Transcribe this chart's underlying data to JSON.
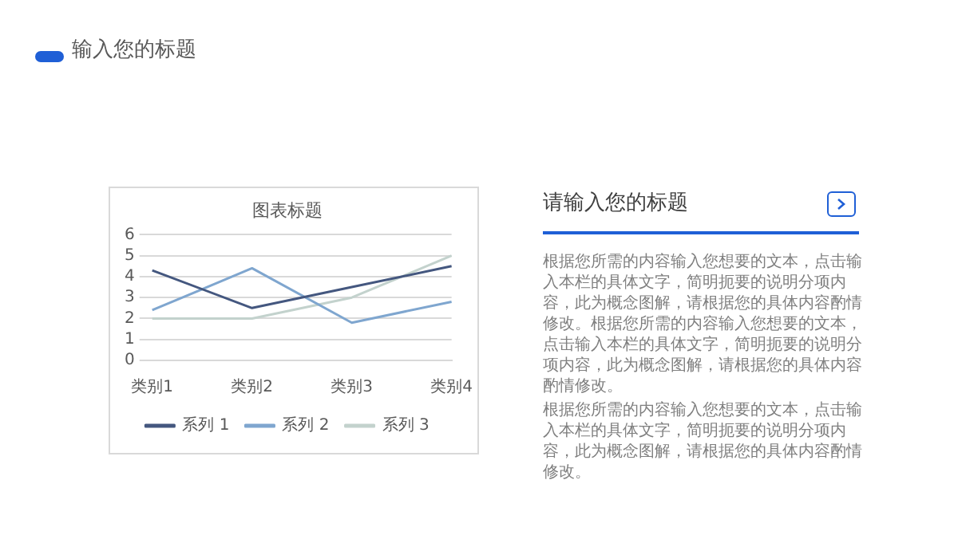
{
  "chart_data": {
    "type": "line",
    "title": "图表标题",
    "categories": [
      "类别1",
      "类别2",
      "类别3",
      "类别4"
    ],
    "series": [
      {
        "name": "系列 1",
        "color": "#44577f",
        "values": [
          4.3,
          2.5,
          3.5,
          4.5
        ]
      },
      {
        "name": "系列 2",
        "color": "#7fa6cf",
        "values": [
          2.4,
          4.4,
          1.8,
          2.8
        ]
      },
      {
        "name": "系列 3",
        "color": "#c3d2cd",
        "values": [
          2,
          2,
          3,
          5
        ]
      }
    ],
    "ylim": [
      0,
      6
    ],
    "yticks": [
      0,
      1,
      2,
      3,
      4,
      5,
      6
    ],
    "grid": "y",
    "legend": "bottom",
    "marker": "none",
    "line_style": "solid",
    "annotations": [
      "输入您的标题",
      "请输入您的标题",
      "根据您所需的内容输入您想要的文本，点击输入本栏的具体文字，简明扼要的说明分项内容，此为概念图解，请根据您的具体内容酌情修改。根据您所需的内容输入您想要的文本，点击输入本栏的具体文字，简明扼要的说明分项内容，此为概念图解，请根据您的具体内容酌情修改。",
      "根据您所需的内容输入您想要的文本，点击输入本栏的具体文字，简明扼要的说明分项内容，此为概念图解，请根据您的具体内容酌情修改。"
    ]
  }
}
